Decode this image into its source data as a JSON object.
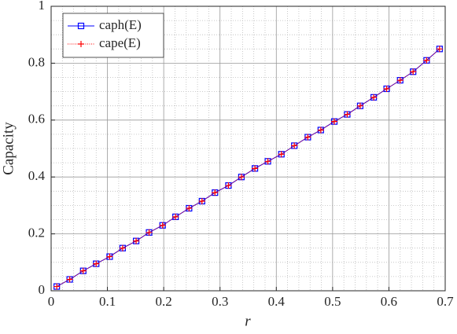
{
  "chart_data": {
    "type": "line",
    "x_label": "r",
    "y_label": "Capacity",
    "x": [
      0.01,
      0.033,
      0.057,
      0.08,
      0.104,
      0.127,
      0.151,
      0.174,
      0.198,
      0.221,
      0.245,
      0.268,
      0.291,
      0.315,
      0.338,
      0.362,
      0.385,
      0.409,
      0.432,
      0.456,
      0.479,
      0.503,
      0.526,
      0.549,
      0.573,
      0.596,
      0.62,
      0.643,
      0.667,
      0.69
    ],
    "series": [
      {
        "name": "caph(E)",
        "color": "#0000ff",
        "marker": "square",
        "line": "solid",
        "values": [
          0.015,
          0.04,
          0.07,
          0.095,
          0.12,
          0.15,
          0.175,
          0.205,
          0.23,
          0.26,
          0.29,
          0.315,
          0.345,
          0.37,
          0.4,
          0.43,
          0.455,
          0.48,
          0.51,
          0.54,
          0.565,
          0.595,
          0.62,
          0.65,
          0.68,
          0.71,
          0.74,
          0.77,
          0.81,
          0.85
        ]
      },
      {
        "name": "cape(E)",
        "color": "#ff0000",
        "marker": "plus",
        "line": "dotted",
        "values": [
          0.015,
          0.04,
          0.07,
          0.095,
          0.12,
          0.15,
          0.175,
          0.205,
          0.23,
          0.26,
          0.29,
          0.315,
          0.345,
          0.37,
          0.4,
          0.43,
          0.455,
          0.48,
          0.51,
          0.54,
          0.565,
          0.595,
          0.62,
          0.65,
          0.68,
          0.71,
          0.74,
          0.77,
          0.81,
          0.85
        ]
      }
    ],
    "xlim": [
      0,
      0.7
    ],
    "xticks": [
      0,
      0.1,
      0.2,
      0.3,
      0.4,
      0.5,
      0.6,
      0.7
    ],
    "ylim": [
      0,
      1
    ],
    "yticks": [
      0,
      0.2,
      0.4,
      0.6,
      0.8,
      1
    ],
    "grid": true,
    "minor_grid": true,
    "legend": "upper left"
  }
}
